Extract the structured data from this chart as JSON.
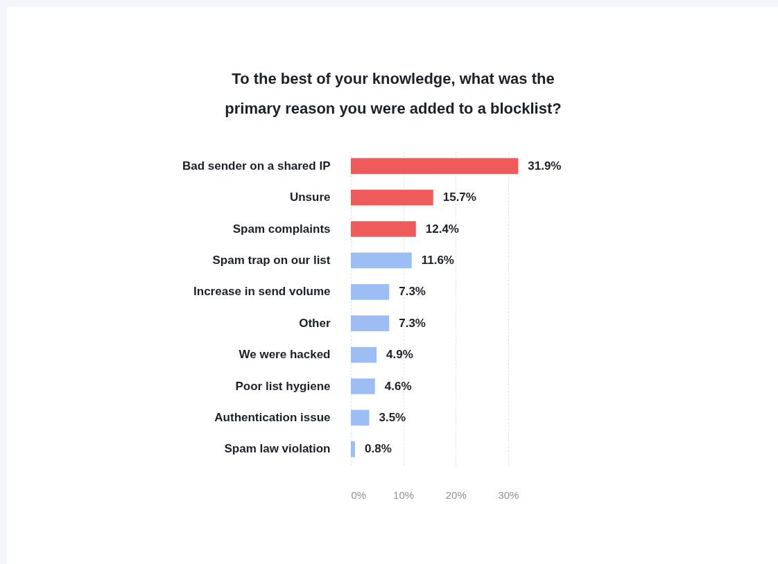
{
  "chart_data": {
    "type": "bar",
    "orientation": "horizontal",
    "title": "To the best of your knowledge, what was the primary reason you were added to a blocklist?",
    "categories": [
      "Bad sender on a shared IP",
      "Unsure",
      "Spam complaints",
      "Spam trap on our list",
      "Increase in send volume",
      "Other",
      "We were hacked",
      "Poor list hygiene",
      "Authentication issue",
      "Spam law violation"
    ],
    "values": [
      31.9,
      15.7,
      12.4,
      11.6,
      7.3,
      7.3,
      4.9,
      4.6,
      3.5,
      0.8
    ],
    "colors": [
      "#ef5a5a",
      "#ef5a5a",
      "#ef5a5a",
      "#9dbdf5",
      "#9dbdf5",
      "#9dbdf5",
      "#9dbdf5",
      "#9dbdf5",
      "#9dbdf5",
      "#9dbdf5"
    ],
    "value_labels": [
      "31.9%",
      "15.7%",
      "12.4%",
      "11.6%",
      "7.3%",
      "7.3%",
      "4.9%",
      "4.6%",
      "3.5%",
      "0.8%"
    ],
    "xlim": [
      0,
      32
    ],
    "xticks": [
      {
        "value": 0,
        "label": "0%"
      },
      {
        "value": 10,
        "label": "10%"
      },
      {
        "value": 20,
        "label": "20%"
      },
      {
        "value": 30,
        "label": "30%"
      }
    ],
    "grid": "x"
  }
}
